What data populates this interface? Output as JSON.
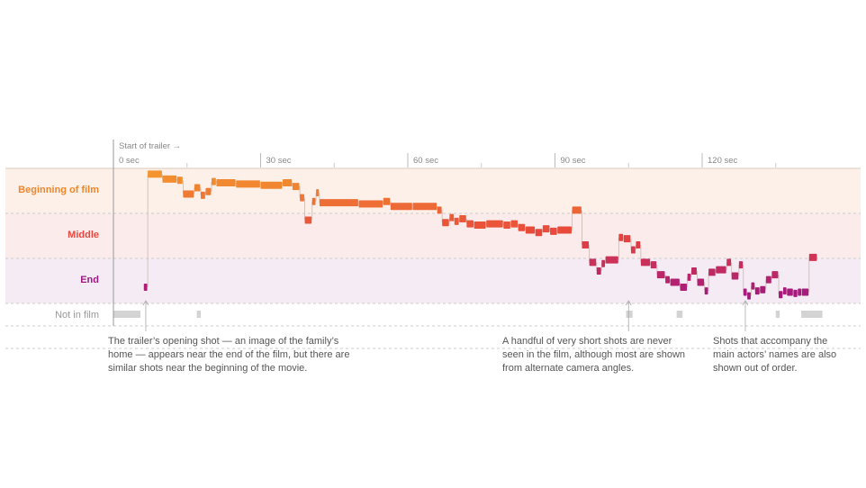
{
  "chart_data": {
    "type": "timeline",
    "start_label": "Start of trailer →",
    "x_unit": "sec",
    "x_range": [
      0,
      145
    ],
    "ticks": [
      {
        "value": 0,
        "label": "0 sec"
      },
      {
        "value": 30,
        "label": "30 sec"
      },
      {
        "value": 60,
        "label": "60 sec"
      },
      {
        "value": 90,
        "label": "90 sec"
      },
      {
        "value": 120,
        "label": "120 sec"
      }
    ],
    "minor_ticks": [
      15,
      45,
      75,
      105,
      135
    ],
    "rows": [
      {
        "key": "beginning",
        "label": "Beginning of film",
        "color": "#f0862b",
        "band": "#fdf0e8"
      },
      {
        "key": "middle",
        "label": "Middle",
        "color": "#e8463e",
        "band": "#fbebea"
      },
      {
        "key": "end",
        "label": "End",
        "color": "#9e1a82",
        "band": "#f5ebf5"
      },
      {
        "key": "notinfilm",
        "label": "Not in film",
        "color": "#cccccc",
        "band": "#ffffff"
      }
    ],
    "series_color_stops": [
      "#f3962e",
      "#e8453c",
      "#a21680"
    ],
    "shots": [
      {
        "t0": 6.2,
        "t1": 7.0,
        "pos": 0.92,
        "in_film": true
      },
      {
        "t0": 7.0,
        "t1": 10.0,
        "pos": 0.01,
        "in_film": true
      },
      {
        "t0": 10.0,
        "t1": 13.0,
        "pos": 0.05,
        "in_film": true
      },
      {
        "t0": 13.0,
        "t1": 14.2,
        "pos": 0.06,
        "in_film": true
      },
      {
        "t0": 14.2,
        "t1": 16.5,
        "pos": 0.17,
        "in_film": true
      },
      {
        "t0": 16.5,
        "t1": 17.8,
        "pos": 0.12,
        "in_film": true
      },
      {
        "t0": 17.8,
        "t1": 18.8,
        "pos": 0.18,
        "in_film": true
      },
      {
        "t0": 18.8,
        "t1": 20.0,
        "pos": 0.15,
        "in_film": true
      },
      {
        "t0": 20.0,
        "t1": 21.0,
        "pos": 0.07,
        "in_film": true
      },
      {
        "t0": 21.0,
        "t1": 25.0,
        "pos": 0.08,
        "in_film": true
      },
      {
        "t0": 25.0,
        "t1": 30.0,
        "pos": 0.09,
        "in_film": true
      },
      {
        "t0": 30.0,
        "t1": 34.5,
        "pos": 0.1,
        "in_film": true
      },
      {
        "t0": 34.5,
        "t1": 36.5,
        "pos": 0.08,
        "in_film": true
      },
      {
        "t0": 36.5,
        "t1": 38.0,
        "pos": 0.11,
        "in_film": true
      },
      {
        "t0": 38.0,
        "t1": 39.0,
        "pos": 0.2,
        "in_film": true
      },
      {
        "t0": 39.0,
        "t1": 40.5,
        "pos": 0.38,
        "in_film": true
      },
      {
        "t0": 40.5,
        "t1": 41.3,
        "pos": 0.23,
        "in_film": true
      },
      {
        "t0": 41.3,
        "t1": 42.0,
        "pos": 0.16,
        "in_film": true
      },
      {
        "t0": 42.0,
        "t1": 50.0,
        "pos": 0.24,
        "in_film": true
      },
      {
        "t0": 50.0,
        "t1": 55.0,
        "pos": 0.25,
        "in_film": true
      },
      {
        "t0": 55.0,
        "t1": 56.5,
        "pos": 0.23,
        "in_film": true
      },
      {
        "t0": 56.5,
        "t1": 61.0,
        "pos": 0.27,
        "in_film": true
      },
      {
        "t0": 61.0,
        "t1": 66.0,
        "pos": 0.27,
        "in_film": true
      },
      {
        "t0": 66.0,
        "t1": 67.0,
        "pos": 0.3,
        "in_film": true
      },
      {
        "t0": 67.0,
        "t1": 68.5,
        "pos": 0.4,
        "in_film": true
      },
      {
        "t0": 68.5,
        "t1": 69.5,
        "pos": 0.36,
        "in_film": true
      },
      {
        "t0": 69.5,
        "t1": 70.5,
        "pos": 0.39,
        "in_film": true
      },
      {
        "t0": 70.5,
        "t1": 72.0,
        "pos": 0.37,
        "in_film": true
      },
      {
        "t0": 72.0,
        "t1": 73.5,
        "pos": 0.41,
        "in_film": true
      },
      {
        "t0": 73.5,
        "t1": 76.0,
        "pos": 0.42,
        "in_film": true
      },
      {
        "t0": 76.0,
        "t1": 79.5,
        "pos": 0.41,
        "in_film": true
      },
      {
        "t0": 79.5,
        "t1": 81.0,
        "pos": 0.42,
        "in_film": true
      },
      {
        "t0": 81.0,
        "t1": 82.5,
        "pos": 0.41,
        "in_film": true
      },
      {
        "t0": 82.5,
        "t1": 84.0,
        "pos": 0.44,
        "in_film": true
      },
      {
        "t0": 84.0,
        "t1": 86.0,
        "pos": 0.46,
        "in_film": true
      },
      {
        "t0": 86.0,
        "t1": 87.5,
        "pos": 0.48,
        "in_film": true
      },
      {
        "t0": 87.5,
        "t1": 89.0,
        "pos": 0.45,
        "in_film": true
      },
      {
        "t0": 89.0,
        "t1": 90.5,
        "pos": 0.47,
        "in_film": true
      },
      {
        "t0": 90.5,
        "t1": 93.5,
        "pos": 0.46,
        "in_film": true
      },
      {
        "t0": 93.5,
        "t1": 95.5,
        "pos": 0.3,
        "in_film": true
      },
      {
        "t0": 95.5,
        "t1": 97.0,
        "pos": 0.58,
        "in_film": true
      },
      {
        "t0": 97.0,
        "t1": 98.5,
        "pos": 0.72,
        "in_film": true
      },
      {
        "t0": 98.5,
        "t1": 99.5,
        "pos": 0.79,
        "in_film": true
      },
      {
        "t0": 99.5,
        "t1": 100.3,
        "pos": 0.73,
        "in_film": true
      },
      {
        "t0": 100.3,
        "t1": 103.0,
        "pos": 0.7,
        "in_film": true
      },
      {
        "t0": 103.0,
        "t1": 104.0,
        "pos": 0.52,
        "in_film": true
      },
      {
        "t0": 104.0,
        "t1": 105.5,
        "pos": 0.53,
        "in_film": true
      },
      {
        "t0": 105.5,
        "t1": 106.5,
        "pos": 0.62,
        "in_film": true
      },
      {
        "t0": 106.5,
        "t1": 107.5,
        "pos": 0.58,
        "in_film": true
      },
      {
        "t0": 107.5,
        "t1": 109.5,
        "pos": 0.72,
        "in_film": true
      },
      {
        "t0": 109.5,
        "t1": 110.8,
        "pos": 0.74,
        "in_film": true
      },
      {
        "t0": 110.8,
        "t1": 112.5,
        "pos": 0.82,
        "in_film": true
      },
      {
        "t0": 112.5,
        "t1": 113.5,
        "pos": 0.86,
        "in_film": true
      },
      {
        "t0": 113.5,
        "t1": 115.5,
        "pos": 0.88,
        "in_film": true
      },
      {
        "t0": 115.5,
        "t1": 117.0,
        "pos": 0.92,
        "in_film": true
      },
      {
        "t0": 117.0,
        "t1": 117.8,
        "pos": 0.84,
        "in_film": true
      },
      {
        "t0": 117.8,
        "t1": 119.0,
        "pos": 0.79,
        "in_film": true
      },
      {
        "t0": 119.0,
        "t1": 120.5,
        "pos": 0.88,
        "in_film": true
      },
      {
        "t0": 120.5,
        "t1": 121.3,
        "pos": 0.95,
        "in_film": true
      },
      {
        "t0": 121.3,
        "t1": 122.8,
        "pos": 0.8,
        "in_film": true
      },
      {
        "t0": 122.8,
        "t1": 125.0,
        "pos": 0.78,
        "in_film": true
      },
      {
        "t0": 125.0,
        "t1": 126.0,
        "pos": 0.72,
        "in_film": true
      },
      {
        "t0": 126.0,
        "t1": 127.5,
        "pos": 0.83,
        "in_film": true
      },
      {
        "t0": 127.5,
        "t1": 128.4,
        "pos": 0.74,
        "in_film": true
      },
      {
        "t0": 128.4,
        "t1": 129.2,
        "pos": 0.96,
        "in_film": true
      },
      {
        "t0": 129.2,
        "t1": 130.0,
        "pos": 0.99,
        "in_film": true
      },
      {
        "t0": 130.0,
        "t1": 130.8,
        "pos": 0.91,
        "in_film": true
      },
      {
        "t0": 130.8,
        "t1": 131.8,
        "pos": 0.95,
        "in_film": true
      },
      {
        "t0": 131.8,
        "t1": 133.0,
        "pos": 0.94,
        "in_film": true
      },
      {
        "t0": 133.0,
        "t1": 134.2,
        "pos": 0.86,
        "in_film": true
      },
      {
        "t0": 134.2,
        "t1": 135.6,
        "pos": 0.82,
        "in_film": true
      },
      {
        "t0": 135.6,
        "t1": 136.5,
        "pos": 0.98,
        "in_film": true
      },
      {
        "t0": 136.5,
        "t1": 137.3,
        "pos": 0.95,
        "in_film": true
      },
      {
        "t0": 137.3,
        "t1": 138.6,
        "pos": 0.96,
        "in_film": true
      },
      {
        "t0": 138.6,
        "t1": 139.5,
        "pos": 0.97,
        "in_film": true
      },
      {
        "t0": 139.5,
        "t1": 140.3,
        "pos": 0.96,
        "in_film": true
      },
      {
        "t0": 140.3,
        "t1": 141.8,
        "pos": 0.96,
        "in_film": true
      },
      {
        "t0": 141.8,
        "t1": 143.5,
        "pos": 0.68,
        "in_film": true
      },
      {
        "t0": 0.0,
        "t1": 5.5,
        "in_film": false
      },
      {
        "t0": 17.0,
        "t1": 17.8,
        "in_film": false
      },
      {
        "t0": 104.5,
        "t1": 105.8,
        "in_film": false
      },
      {
        "t0": 114.8,
        "t1": 116.0,
        "in_film": false
      },
      {
        "t0": 135.0,
        "t1": 135.8,
        "in_film": false
      },
      {
        "t0": 140.2,
        "t1": 144.5,
        "in_film": false
      }
    ],
    "annotations": [
      {
        "at": 6.6,
        "text": "The trailer’s opening shot — an image of the family’s home — appears near the end of the film, but there are similar shots near the beginning of the movie."
      },
      {
        "at": 105.0,
        "text": "A handful of very short shots are never seen in the film, although most are shown from alternate camera angles."
      },
      {
        "at": 128.8,
        "text": "Shots that accompany the main actors’ names are also shown out of order."
      }
    ]
  }
}
